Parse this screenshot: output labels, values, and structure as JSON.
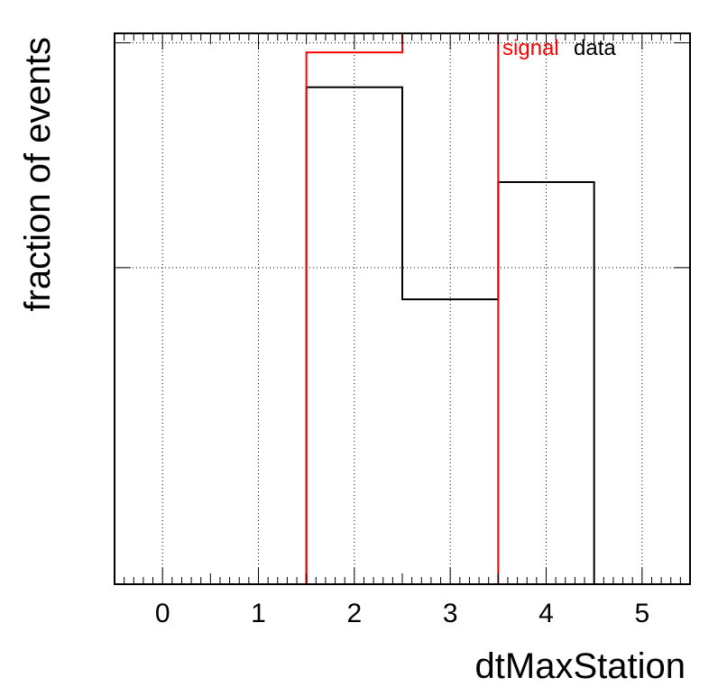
{
  "chart_data": {
    "type": "histogram",
    "xlabel": "dtMaxStation",
    "ylabel": "fraction of events",
    "xlim": [
      -0.5,
      5.5
    ],
    "ylim": [
      0,
      0.87
    ],
    "x_ticks": [
      "0",
      "1",
      "2",
      "3",
      "4",
      "5"
    ],
    "y_ticks_labeled": false,
    "grid": true,
    "grid_y_values": [
      0.5,
      0.855
    ],
    "bin_edges": [
      -0.5,
      0.5,
      1.5,
      2.5,
      3.5,
      4.5,
      5.5
    ],
    "series": [
      {
        "name": "signal",
        "color": "#ff0000",
        "values": [
          0,
          0,
          0.84,
          0.87,
          0,
          0
        ]
      },
      {
        "name": "data",
        "color": "#000000",
        "values": [
          0,
          0,
          0.785,
          0.45,
          0.635,
          0
        ]
      }
    ],
    "legend": {
      "placement": "top-right",
      "entries": [
        "signal",
        "data"
      ]
    }
  }
}
